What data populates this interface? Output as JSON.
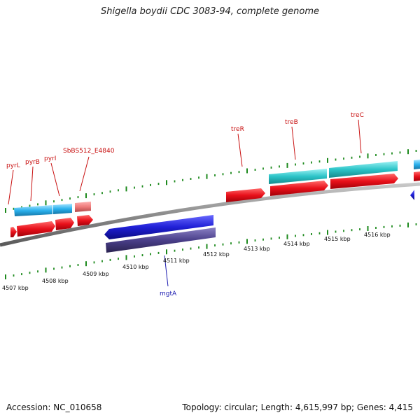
{
  "title": "Shigella boydii CDC 3083-94, complete genome",
  "footer": {
    "accession": "Accession: NC_010658",
    "summary": "Topology: circular; Length: 4,615,997 bp; Genes: 4,415"
  },
  "axis_labels": [
    "4507 kbp",
    "4508 kbp",
    "4509 kbp",
    "4510 kbp",
    "4511 kbp",
    "4512 kbp",
    "4513 kbp",
    "4514 kbp",
    "4515 kbp",
    "4516 kbp"
  ],
  "gene_labels": {
    "pyrL": "pyrL",
    "pyrB": "pyrB",
    "pyrI": "pyrI",
    "sbbs": "SbBS512_E4840",
    "treR": "treR",
    "treB": "treB",
    "treC": "treC",
    "mgtA": "mgtA"
  },
  "colors": {
    "forward_gene": "#e8101a",
    "forward_feature": "#29b8e0",
    "reverse_gene": "#1f1fd6",
    "reverse_feature": "#4a3f8a",
    "pseudo_gene": "#ee7a7a",
    "tick": "#1d8a1d",
    "backbone": "#8c8c8c",
    "label_forward": "#c81010",
    "label_reverse": "#1a1ab0"
  }
}
